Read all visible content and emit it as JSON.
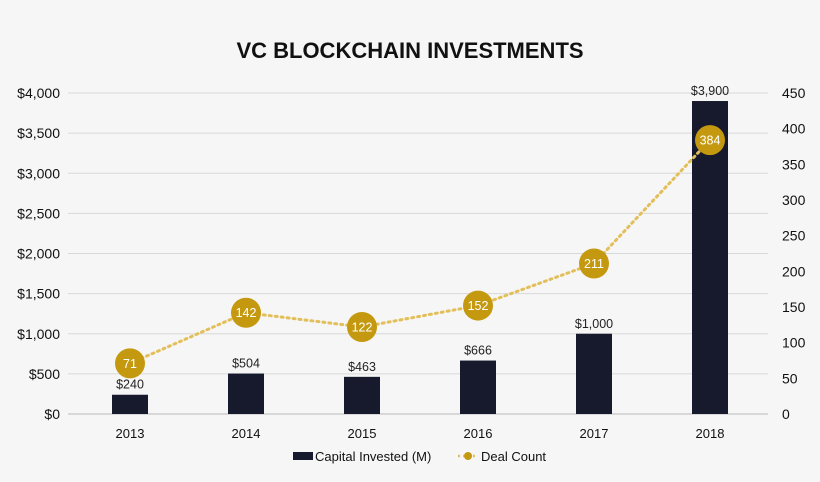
{
  "chart_data": {
    "type": "bar",
    "title": "VC BLOCKCHAIN INVESTMENTS",
    "categories": [
      "2013",
      "2014",
      "2015",
      "2016",
      "2017",
      "2018"
    ],
    "series": [
      {
        "name": "Capital Invested (M)",
        "type": "bar",
        "axis": "left",
        "values": [
          240,
          504,
          463,
          666,
          1000,
          3900
        ],
        "labels": [
          "$240",
          "$504",
          "$463",
          "$666",
          "$1,000",
          "$3,900"
        ],
        "color": "#161a2c"
      },
      {
        "name": "Deal Count",
        "type": "line",
        "axis": "right",
        "values": [
          71,
          142,
          122,
          152,
          211,
          384
        ],
        "color": "#c4990f"
      }
    ],
    "y_left": {
      "range": [
        0,
        4000
      ],
      "ticks": [
        0,
        500,
        1000,
        1500,
        2000,
        2500,
        3000,
        3500,
        4000
      ],
      "tick_labels": [
        "$0",
        "$500",
        "$1,000",
        "$1,500",
        "$2,000",
        "$2,500",
        "$3,000",
        "$3,500",
        "$4,000"
      ]
    },
    "y_right": {
      "range": [
        0,
        450
      ],
      "ticks": [
        0,
        50,
        100,
        150,
        200,
        250,
        300,
        350,
        400,
        450
      ],
      "tick_labels": [
        "0",
        "50",
        "100",
        "150",
        "200",
        "250",
        "300",
        "350",
        "400",
        "450"
      ]
    },
    "grid": true,
    "legend": "bottom"
  }
}
